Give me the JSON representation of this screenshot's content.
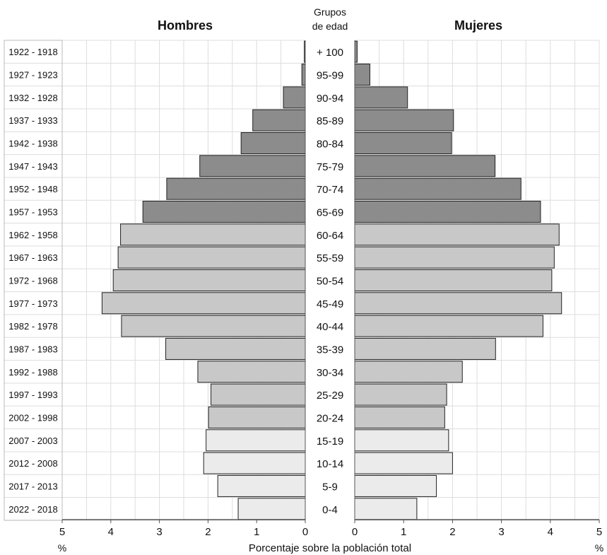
{
  "chart_data": {
    "type": "bar",
    "subtype": "population-pyramid",
    "left_title": "Hombres",
    "right_title": "Mujeres",
    "center_header_line1": "Grupos",
    "center_header_line2": "de edad",
    "xlabel": "Porcentaje sobre la población total",
    "unit_left": "%",
    "unit_right": "%",
    "xlim": [
      0,
      5
    ],
    "x_ticks": [
      "5",
      "4",
      "3",
      "2",
      "1",
      "0",
      "0",
      "1",
      "2",
      "3",
      "4",
      "5"
    ],
    "grid": true,
    "colors": {
      "oldest": "#8c8c8c",
      "middle": "#c8c8c8",
      "youngest": "#ebebeb",
      "outline": "#222222",
      "grid": "#dddddd"
    },
    "categories": [
      "+ 100",
      "95-99",
      "90-94",
      "85-89",
      "80-84",
      "75-79",
      "70-74",
      "65-69",
      "60-64",
      "55-59",
      "50-54",
      "45-49",
      "40-44",
      "35-39",
      "30-34",
      "25-29",
      "20-24",
      "15-19",
      "10-14",
      "5-9",
      "0-4"
    ],
    "birth_years": [
      "1922 - 1918",
      "1927 - 1923",
      "1932 - 1928",
      "1937 - 1933",
      "1942 - 1938",
      "1947 - 1943",
      "1952 - 1948",
      "1957 - 1953",
      "1962 - 1958",
      "1967 - 1963",
      "1972 - 1968",
      "1977 - 1973",
      "1982 - 1978",
      "1987 - 1983",
      "1992 - 1988",
      "1997 - 1993",
      "2002 - 1998",
      "2007 - 2003",
      "2012 - 2008",
      "2017 - 2013",
      "2022 - 2018"
    ],
    "groups": [
      "oldest",
      "oldest",
      "oldest",
      "oldest",
      "oldest",
      "oldest",
      "oldest",
      "oldest",
      "middle",
      "middle",
      "middle",
      "middle",
      "middle",
      "middle",
      "middle",
      "middle",
      "middle",
      "youngest",
      "youngest",
      "youngest",
      "youngest"
    ],
    "series": [
      {
        "name": "Hombres",
        "values": [
          0.02,
          0.07,
          0.45,
          1.08,
          1.32,
          2.17,
          2.85,
          3.34,
          3.8,
          3.85,
          3.95,
          4.18,
          3.78,
          2.87,
          2.21,
          1.94,
          1.99,
          2.04,
          2.09,
          1.8,
          1.38
        ]
      },
      {
        "name": "Mujeres",
        "values": [
          0.05,
          0.31,
          1.08,
          2.02,
          1.98,
          2.87,
          3.4,
          3.8,
          4.18,
          4.08,
          4.03,
          4.23,
          3.85,
          2.88,
          2.2,
          1.88,
          1.84,
          1.92,
          2.0,
          1.67,
          1.27
        ]
      }
    ]
  }
}
